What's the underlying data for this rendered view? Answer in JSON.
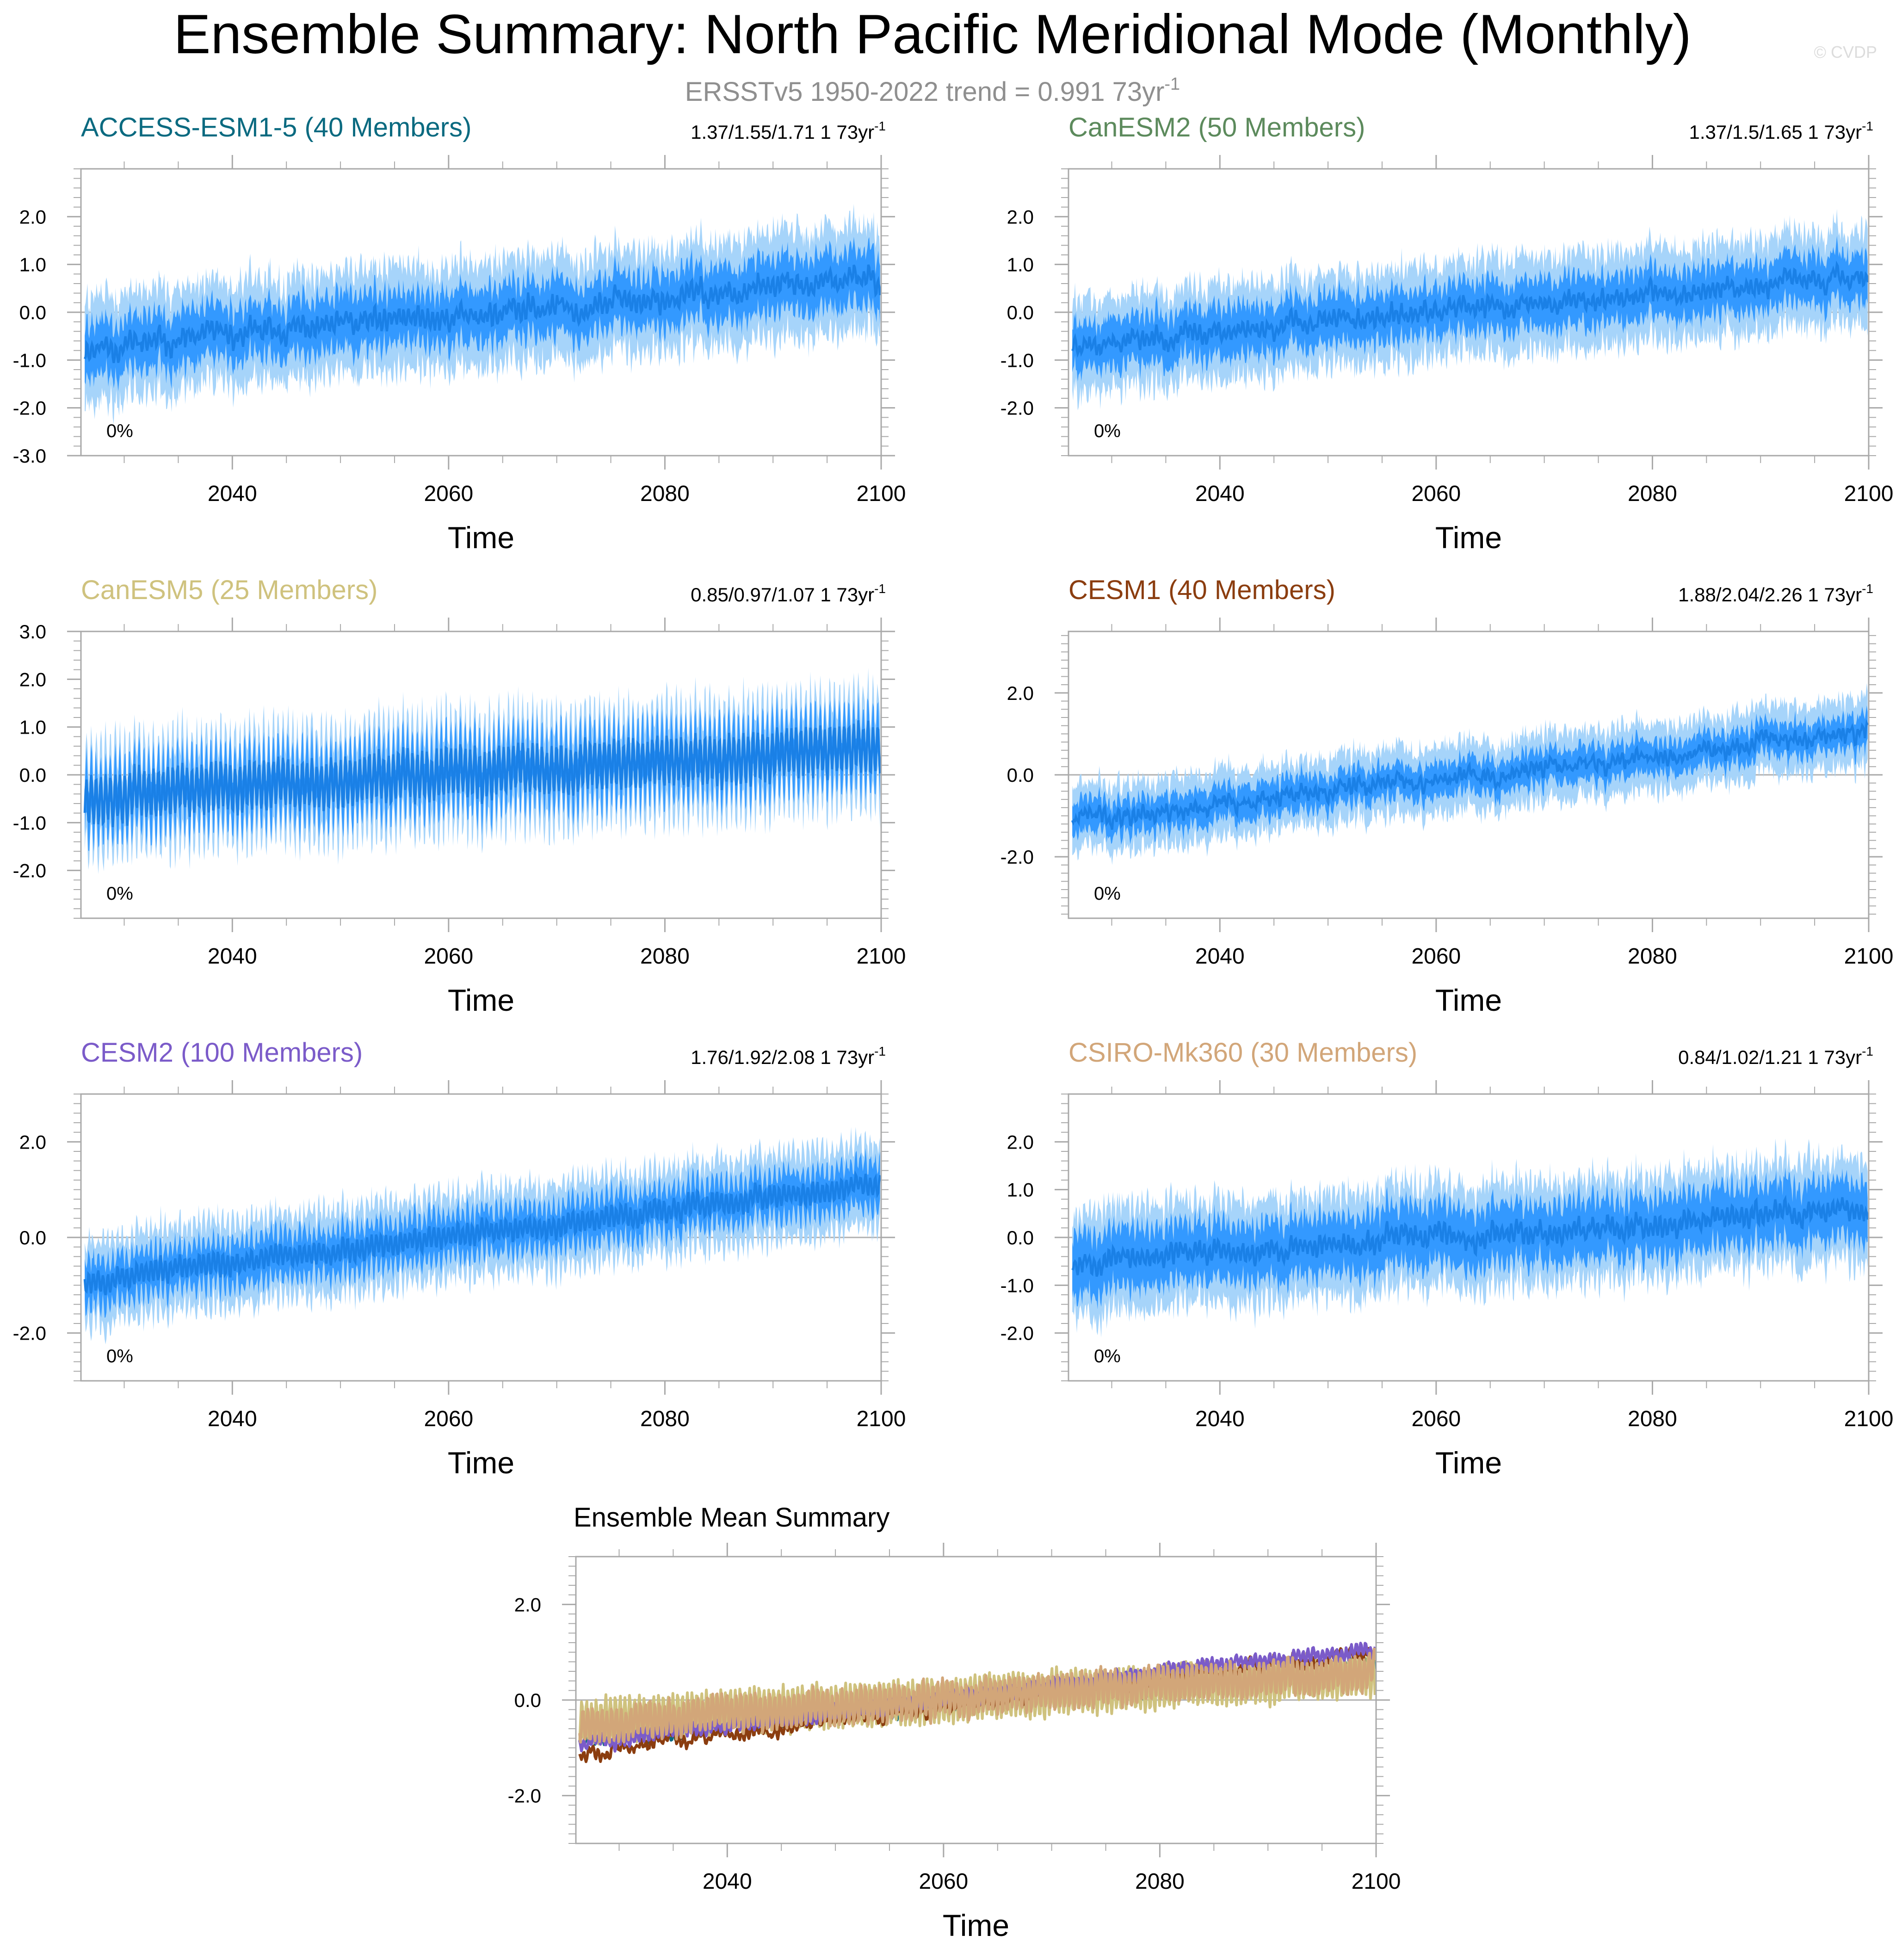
{
  "header": {
    "title": "Ensemble Summary: North Pacific Meridional Mode (Monthly)",
    "subtitle": "ERSSTv5 1950-2022 trend = 0.991 73yr",
    "subtitle_sup": "-1",
    "watermark": "© CVDP"
  },
  "colors": {
    "band_outer": "#a6d4fa",
    "band_inner": "#3399ff",
    "median_line": "#1a80e6",
    "zero_line": "#b0b0b0",
    "axis": "#a9a9a9"
  },
  "chart_data": [
    {
      "type": "area",
      "title": "ACCESS-ESM1-5 (40 Members)",
      "title_color": "#0a6a80",
      "stats": "1.37/1.55/1.71 1 73yr",
      "stats_sup": "-1",
      "pct": "0%",
      "xlabel": "Time",
      "xlim": [
        2026,
        2100
      ],
      "xticks": [
        "2040",
        "2060",
        "2080",
        "2100"
      ],
      "ylim": [
        -3,
        3
      ],
      "yticks": [
        "2.0",
        "1.0",
        "0.0",
        "-1.0",
        "-2.0",
        "-3.0"
      ],
      "trend": [
        -0.75,
        0.7
      ],
      "amp": 0.18,
      "inner": 0.55,
      "outer": 1.05,
      "seasonal": 0.15,
      "seed": 11
    },
    {
      "type": "area",
      "title": "CanESM2 (50 Members)",
      "title_color": "#5c8a5c",
      "stats": "1.37/1.5/1.65 1 73yr",
      "stats_sup": "-1",
      "pct": "0%",
      "xlabel": "Time",
      "xlim": [
        2026,
        2100
      ],
      "xticks": [
        "2040",
        "2060",
        "2080",
        "2100"
      ],
      "ylim": [
        -3,
        3
      ],
      "yticks": [
        "2.0",
        "1.0",
        "0.0",
        "-1.0",
        "-2.0"
      ],
      "trend": [
        -0.65,
        0.75
      ],
      "amp": 0.15,
      "inner": 0.5,
      "outer": 0.95,
      "seasonal": 0.12,
      "seed": 23
    },
    {
      "type": "area",
      "title": "CanESM5 (25 Members)",
      "title_color": "#cfc27e",
      "stats": "0.85/0.97/1.07 1 73yr",
      "stats_sup": "-1",
      "pct": "0%",
      "xlabel": "Time",
      "xlim": [
        2026,
        2100
      ],
      "xticks": [
        "2040",
        "2060",
        "2080",
        "2100"
      ],
      "ylim": [
        -3,
        3
      ],
      "yticks": [
        "3.0",
        "2.0",
        "1.0",
        "0.0",
        "-1.0",
        "-2.0"
      ],
      "trend": [
        -0.45,
        0.55
      ],
      "amp": 0.12,
      "inner": 0.55,
      "outer": 0.95,
      "seasonal": 0.5,
      "seed": 37
    },
    {
      "type": "area",
      "title": "CESM1 (40 Members)",
      "title_color": "#8b3d0f",
      "stats": "1.88/2.04/2.26 1 73yr",
      "stats_sup": "-1",
      "pct": "0%",
      "xlabel": "Time",
      "xlim": [
        2026,
        2100
      ],
      "xticks": [
        "2040",
        "2060",
        "2080",
        "2100"
      ],
      "ylim": [
        -3.5,
        3.5
      ],
      "yticks": [
        "2.0",
        "0.0",
        "-2.0"
      ],
      "trend": [
        -1.1,
        1.0
      ],
      "amp": 0.18,
      "inner": 0.4,
      "outer": 0.8,
      "seasonal": 0.1,
      "seed": 41
    },
    {
      "type": "area",
      "title": "CESM2 (100 Members)",
      "title_color": "#7b5bc9",
      "stats": "1.76/1.92/2.08 1 73yr",
      "stats_sup": "-1",
      "pct": "0%",
      "xlabel": "Time",
      "xlim": [
        2026,
        2100
      ],
      "xticks": [
        "2040",
        "2060",
        "2080",
        "2100"
      ],
      "ylim": [
        -3,
        3
      ],
      "yticks": [
        "2.0",
        "0.0",
        "-2.0"
      ],
      "trend": [
        -0.9,
        1.1
      ],
      "amp": 0.1,
      "inner": 0.45,
      "outer": 0.85,
      "seasonal": 0.2,
      "seed": 53
    },
    {
      "type": "area",
      "title": "CSIRO-Mk360 (30 Members)",
      "title_color": "#d2a679",
      "stats": "0.84/1.02/1.21 1 73yr",
      "stats_sup": "-1",
      "pct": "0%",
      "xlabel": "Time",
      "xlim": [
        2026,
        2100
      ],
      "xticks": [
        "2040",
        "2060",
        "2080",
        "2100"
      ],
      "ylim": [
        -3,
        3
      ],
      "yticks": [
        "2.0",
        "1.0",
        "0.0",
        "-1.0",
        "-2.0"
      ],
      "trend": [
        -0.5,
        0.6
      ],
      "amp": 0.15,
      "inner": 0.6,
      "outer": 1.05,
      "seasonal": 0.15,
      "seed": 67
    },
    {
      "type": "line",
      "title": "Ensemble Mean Summary",
      "title_color": "#000000",
      "xlabel": "Time",
      "xlim": [
        2026,
        2100
      ],
      "xticks": [
        "2040",
        "2060",
        "2080",
        "2100"
      ],
      "ylim": [
        -3,
        3
      ],
      "yticks": [
        "2.0",
        "0.0",
        "-2.0"
      ],
      "series": [
        {
          "name": "ACCESS-ESM1-5",
          "color": "#0a6a80",
          "trend": [
            -0.75,
            0.7
          ],
          "amp": 0.12,
          "seasonal": 0.1,
          "seed": 111
        },
        {
          "name": "CanESM2",
          "color": "#5c8a5c",
          "trend": [
            -0.65,
            0.75
          ],
          "amp": 0.1,
          "seasonal": 0.08,
          "seed": 123
        },
        {
          "name": "CanESM5",
          "color": "#cfc27e",
          "trend": [
            -0.45,
            0.55
          ],
          "amp": 0.08,
          "seasonal": 0.45,
          "seed": 137
        },
        {
          "name": "CESM1",
          "color": "#8b3d0f",
          "trend": [
            -1.1,
            1.0
          ],
          "amp": 0.12,
          "seasonal": 0.08,
          "seed": 141
        },
        {
          "name": "CESM2",
          "color": "#7b5bc9",
          "trend": [
            -0.9,
            1.1
          ],
          "amp": 0.08,
          "seasonal": 0.12,
          "seed": 153
        },
        {
          "name": "CSIRO-Mk360",
          "color": "#d2a679",
          "trend": [
            -0.5,
            0.6
          ],
          "amp": 0.1,
          "seasonal": 0.35,
          "seed": 167
        }
      ]
    }
  ]
}
